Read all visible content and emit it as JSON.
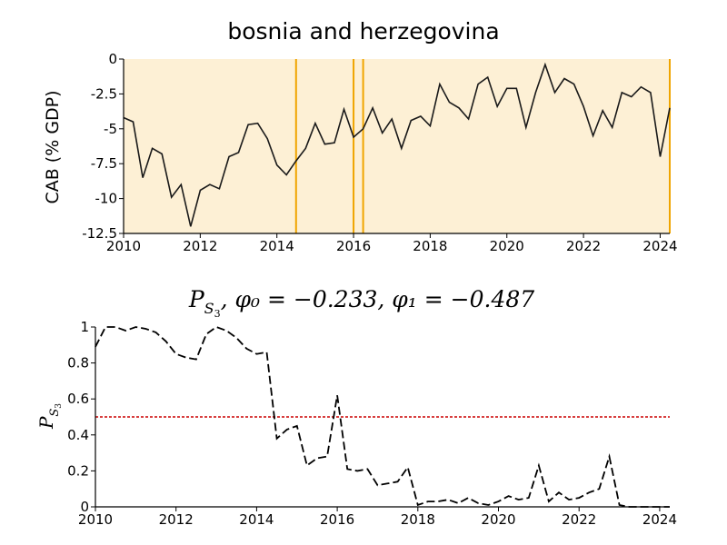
{
  "charts": {
    "top": {
      "title": "bosnia and herzegovina",
      "ylabel": "CAB (% GDP)",
      "bg_color": "#fdf0d5",
      "line_color": "#1a1a1a",
      "vline_color": "#f0a500"
    },
    "bottom": {
      "title_math": {
        "base": "P",
        "sub": "S",
        "subsub": "3",
        "rest": ", φ₀ = −0.233, φ₁ = −0.487"
      },
      "ylabel_math": {
        "base": "P",
        "sub": "S",
        "subsub": "3"
      },
      "line_color": "#000000",
      "threshold_color": "#cc0000"
    }
  },
  "chart_data": [
    {
      "type": "line",
      "title": "bosnia and herzegovina",
      "xlabel": "",
      "ylabel": "CAB (% GDP)",
      "xlim": [
        2010,
        2024.25
      ],
      "ylim": [
        -12.5,
        0
      ],
      "xticks": [
        2010,
        2012,
        2014,
        2016,
        2018,
        2020,
        2022,
        2024
      ],
      "yticks": [
        0,
        -2.5,
        -5,
        -7.5,
        -10,
        -12.5
      ],
      "ytick_labels": [
        "0",
        "-2.5",
        "-5",
        "-7.5",
        "-10",
        "-12.5"
      ],
      "grid": false,
      "background_shading": true,
      "vertical_lines": [
        2014.5,
        2016.0,
        2016.25,
        2024.25
      ],
      "x": [
        2010.0,
        2010.25,
        2010.5,
        2010.75,
        2011.0,
        2011.25,
        2011.5,
        2011.75,
        2012.0,
        2012.25,
        2012.5,
        2012.75,
        2013.0,
        2013.25,
        2013.5,
        2013.75,
        2014.0,
        2014.25,
        2014.5,
        2014.75,
        2015.0,
        2015.25,
        2015.5,
        2015.75,
        2016.0,
        2016.25,
        2016.5,
        2016.75,
        2017.0,
        2017.25,
        2017.5,
        2017.75,
        2018.0,
        2018.25,
        2018.5,
        2018.75,
        2019.0,
        2019.25,
        2019.5,
        2019.75,
        2020.0,
        2020.25,
        2020.5,
        2020.75,
        2021.0,
        2021.25,
        2021.5,
        2021.75,
        2022.0,
        2022.25,
        2022.5,
        2022.75,
        2023.0,
        2023.25,
        2023.5,
        2023.75,
        2024.0,
        2024.25
      ],
      "y": [
        -4.2,
        -4.5,
        -8.5,
        -6.4,
        -6.8,
        -9.9,
        -9.0,
        -12.0,
        -9.4,
        -9.0,
        -9.3,
        -7.0,
        -6.7,
        -4.7,
        -4.6,
        -5.7,
        -7.6,
        -8.3,
        -7.3,
        -6.4,
        -4.6,
        -6.1,
        -6.0,
        -3.6,
        -5.6,
        -5.0,
        -3.5,
        -5.3,
        -4.3,
        -6.4,
        -4.4,
        -4.1,
        -4.8,
        -1.8,
        -3.1,
        -3.5,
        -4.3,
        -1.8,
        -1.3,
        -3.4,
        -2.1,
        -2.1,
        -4.9,
        -2.4,
        -0.4,
        -2.4,
        -1.4,
        -1.8,
        -3.4,
        -5.5,
        -3.7,
        -4.9,
        -2.4,
        -2.7,
        -2.0,
        -2.4,
        -7.0,
        -3.5
      ]
    },
    {
      "type": "line",
      "title": "P_S3, φ0 = −0.233, φ1 = −0.487",
      "xlabel": "",
      "ylabel": "P_S3",
      "xlim": [
        2010,
        2024.25
      ],
      "ylim": [
        0,
        1
      ],
      "xticks": [
        2010,
        2012,
        2014,
        2016,
        2018,
        2020,
        2022,
        2024
      ],
      "yticks": [
        0,
        0.2,
        0.4,
        0.6,
        0.8,
        1
      ],
      "ytick_labels": [
        "0",
        "0.2",
        "0.4",
        "0.6",
        "0.8",
        "1"
      ],
      "grid": false,
      "line_style": "dashed",
      "threshold": 0.5,
      "x": [
        2010.0,
        2010.25,
        2010.5,
        2010.75,
        2011.0,
        2011.25,
        2011.5,
        2011.75,
        2012.0,
        2012.25,
        2012.5,
        2012.75,
        2013.0,
        2013.25,
        2013.5,
        2013.75,
        2014.0,
        2014.25,
        2014.5,
        2014.75,
        2015.0,
        2015.25,
        2015.5,
        2015.75,
        2016.0,
        2016.25,
        2016.5,
        2016.75,
        2017.0,
        2017.25,
        2017.5,
        2017.75,
        2018.0,
        2018.25,
        2018.5,
        2018.75,
        2019.0,
        2019.25,
        2019.5,
        2019.75,
        2020.0,
        2020.25,
        2020.5,
        2020.75,
        2021.0,
        2021.25,
        2021.5,
        2021.75,
        2022.0,
        2022.25,
        2022.5,
        2022.75,
        2023.0,
        2023.25,
        2023.5,
        2023.75,
        2024.0,
        2024.25
      ],
      "y": [
        0.89,
        1.0,
        1.0,
        0.98,
        1.0,
        0.99,
        0.97,
        0.92,
        0.85,
        0.83,
        0.82,
        0.96,
        1.0,
        0.98,
        0.94,
        0.88,
        0.85,
        0.86,
        0.38,
        0.43,
        0.45,
        0.23,
        0.27,
        0.28,
        0.62,
        0.21,
        0.2,
        0.21,
        0.12,
        0.13,
        0.14,
        0.22,
        0.01,
        0.03,
        0.03,
        0.04,
        0.02,
        0.05,
        0.02,
        0.01,
        0.03,
        0.06,
        0.04,
        0.05,
        0.23,
        0.03,
        0.08,
        0.04,
        0.05,
        0.08,
        0.1,
        0.28,
        0.01,
        0.0,
        0.0,
        0.0,
        0.0,
        0.0
      ]
    }
  ]
}
